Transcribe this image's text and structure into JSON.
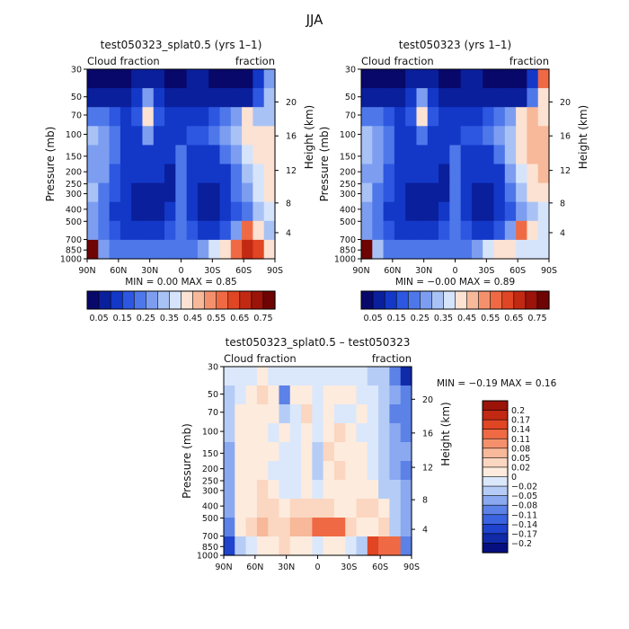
{
  "figure_title": "JJA",
  "chart_data": [
    {
      "type": "heatmap",
      "id": "top-left",
      "title": "test050323_splat0.5 (yrs 1–1)",
      "variable_label": "Cloud fraction",
      "units_label": "fraction",
      "xlabel": "",
      "ylabel": "Pressure (mb)",
      "y2label": "Height (km)",
      "xticks": [
        "90N",
        "60N",
        "30N",
        "0",
        "30S",
        "60S",
        "90S"
      ],
      "yticks": [
        "30",
        "50",
        "70",
        "100",
        "150",
        "200",
        "250",
        "300",
        "400",
        "500",
        "700",
        "850",
        "1000"
      ],
      "y2ticks": [
        "20",
        "16",
        "12",
        "8",
        "4"
      ],
      "stats_text": "MIN =    0.00   MAX =    0.85",
      "min": 0.0,
      "max": 0.85,
      "colorbar_labels": [
        "0.05",
        "0.15",
        "0.25",
        "0.35",
        "0.45",
        "0.55",
        "0.65",
        "0.75"
      ],
      "colorbar_colors": [
        "#08086b",
        "#0a1f9c",
        "#1338c8",
        "#2d57e0",
        "#4e78ea",
        "#7d9ef0",
        "#a9c2f6",
        "#d6e4fb",
        "#fbe2d3",
        "#f8b89a",
        "#f4916c",
        "#ef6a44",
        "#e04524",
        "#c22913",
        "#9b1309",
        "#6e0404"
      ],
      "cells": [
        [
          0.02,
          0.02,
          0.02,
          0.03,
          0.05,
          0.05,
          0.05,
          0.04,
          0.03,
          0.05,
          0.05,
          0.04,
          0.03,
          0.02,
          0.04,
          0.12,
          0.3
        ],
        [
          0.05,
          0.05,
          0.05,
          0.06,
          0.12,
          0.28,
          0.12,
          0.06,
          0.05,
          0.05,
          0.06,
          0.06,
          0.05,
          0.05,
          0.06,
          0.16,
          0.32
        ],
        [
          0.22,
          0.2,
          0.16,
          0.12,
          0.16,
          0.4,
          0.16,
          0.1,
          0.1,
          0.1,
          0.12,
          0.16,
          0.2,
          0.3,
          0.4,
          0.35,
          0.33
        ],
        [
          0.32,
          0.3,
          0.24,
          0.15,
          0.12,
          0.25,
          0.14,
          0.12,
          0.14,
          0.16,
          0.16,
          0.2,
          0.25,
          0.32,
          0.4,
          0.42,
          0.4
        ],
        [
          0.3,
          0.28,
          0.22,
          0.12,
          0.1,
          0.14,
          0.12,
          0.1,
          0.22,
          0.14,
          0.12,
          0.14,
          0.2,
          0.3,
          0.36,
          0.4,
          0.4
        ],
        [
          0.3,
          0.26,
          0.18,
          0.12,
          0.1,
          0.1,
          0.1,
          0.08,
          0.22,
          0.14,
          0.1,
          0.1,
          0.14,
          0.24,
          0.32,
          0.38,
          0.4
        ],
        [
          0.32,
          0.24,
          0.16,
          0.1,
          0.06,
          0.06,
          0.06,
          0.08,
          0.2,
          0.14,
          0.08,
          0.08,
          0.1,
          0.2,
          0.3,
          0.36,
          0.4
        ],
        [
          0.3,
          0.22,
          0.14,
          0.1,
          0.06,
          0.05,
          0.06,
          0.1,
          0.22,
          0.14,
          0.08,
          0.08,
          0.1,
          0.18,
          0.24,
          0.32,
          0.36
        ],
        [
          0.28,
          0.2,
          0.18,
          0.14,
          0.12,
          0.1,
          0.12,
          0.18,
          0.24,
          0.18,
          0.12,
          0.12,
          0.16,
          0.3,
          0.6,
          0.4,
          0.35
        ],
        [
          0.8,
          0.3,
          0.24,
          0.2,
          0.2,
          0.2,
          0.2,
          0.24,
          0.24,
          0.22,
          0.3,
          0.36,
          0.4,
          0.55,
          0.7,
          0.62,
          0.4
        ]
      ]
    },
    {
      "type": "heatmap",
      "id": "top-right",
      "title": "test050323 (yrs 1–1)",
      "variable_label": "Cloud fraction",
      "units_label": "fraction",
      "xlabel": "",
      "ylabel": "Pressure (mb)",
      "y2label": "Height (km)",
      "xticks": [
        "90N",
        "60N",
        "30N",
        "0",
        "30S",
        "60S",
        "90S"
      ],
      "yticks": [
        "30",
        "50",
        "70",
        "100",
        "150",
        "200",
        "250",
        "300",
        "400",
        "500",
        "700",
        "850",
        "1000"
      ],
      "y2ticks": [
        "20",
        "16",
        "12",
        "8",
        "4"
      ],
      "stats_text": "MIN =   −0.00   MAX =    0.89",
      "min": -0.0,
      "max": 0.89,
      "colorbar_labels": [
        "0.05",
        "0.15",
        "0.25",
        "0.35",
        "0.45",
        "0.55",
        "0.65",
        "0.75"
      ],
      "colorbar_colors": [
        "#08086b",
        "#0a1f9c",
        "#1338c8",
        "#2d57e0",
        "#4e78ea",
        "#7d9ef0",
        "#a9c2f6",
        "#d6e4fb",
        "#fbe2d3",
        "#f8b89a",
        "#f4916c",
        "#ef6a44",
        "#e04524",
        "#c22913",
        "#9b1309",
        "#6e0404"
      ],
      "cells": [
        [
          0.02,
          0.02,
          0.02,
          0.03,
          0.05,
          0.05,
          0.05,
          0.04,
          0.03,
          0.05,
          0.05,
          0.04,
          0.03,
          0.02,
          0.04,
          0.14,
          0.55
        ],
        [
          0.05,
          0.05,
          0.05,
          0.06,
          0.12,
          0.3,
          0.12,
          0.06,
          0.05,
          0.05,
          0.06,
          0.06,
          0.05,
          0.05,
          0.06,
          0.2,
          0.42
        ],
        [
          0.24,
          0.22,
          0.16,
          0.12,
          0.16,
          0.42,
          0.16,
          0.1,
          0.1,
          0.1,
          0.12,
          0.16,
          0.2,
          0.3,
          0.42,
          0.45,
          0.44
        ],
        [
          0.34,
          0.3,
          0.24,
          0.15,
          0.12,
          0.24,
          0.14,
          0.12,
          0.14,
          0.16,
          0.16,
          0.2,
          0.25,
          0.34,
          0.44,
          0.48,
          0.46
        ],
        [
          0.32,
          0.28,
          0.22,
          0.12,
          0.1,
          0.14,
          0.12,
          0.1,
          0.22,
          0.14,
          0.12,
          0.14,
          0.2,
          0.32,
          0.4,
          0.46,
          0.46
        ],
        [
          0.3,
          0.26,
          0.18,
          0.12,
          0.1,
          0.1,
          0.1,
          0.08,
          0.22,
          0.14,
          0.1,
          0.1,
          0.14,
          0.26,
          0.36,
          0.44,
          0.46
        ],
        [
          0.32,
          0.24,
          0.16,
          0.1,
          0.05,
          0.05,
          0.06,
          0.08,
          0.2,
          0.14,
          0.08,
          0.08,
          0.1,
          0.2,
          0.32,
          0.4,
          0.44
        ],
        [
          0.3,
          0.22,
          0.14,
          0.1,
          0.05,
          0.05,
          0.06,
          0.1,
          0.22,
          0.14,
          0.08,
          0.08,
          0.1,
          0.18,
          0.26,
          0.34,
          0.38
        ],
        [
          0.28,
          0.2,
          0.18,
          0.14,
          0.12,
          0.1,
          0.12,
          0.18,
          0.24,
          0.18,
          0.14,
          0.12,
          0.16,
          0.3,
          0.56,
          0.4,
          0.36
        ],
        [
          0.86,
          0.32,
          0.24,
          0.2,
          0.2,
          0.2,
          0.2,
          0.24,
          0.24,
          0.22,
          0.28,
          0.38,
          0.44,
          0.4,
          0.38,
          0.36,
          0.38
        ]
      ]
    },
    {
      "type": "heatmap",
      "id": "difference",
      "title": "test050323_splat0.5 – test050323",
      "variable_label": "Cloud fraction",
      "units_label": "fraction",
      "xlabel": "",
      "ylabel": "Pressure (mb)",
      "y2label": "Height (km)",
      "xticks": [
        "90N",
        "60N",
        "30N",
        "0",
        "30S",
        "60S",
        "90S"
      ],
      "yticks": [
        "30",
        "50",
        "70",
        "100",
        "150",
        "200",
        "250",
        "300",
        "400",
        "500",
        "700",
        "850",
        "1000"
      ],
      "y2ticks": [
        "20",
        "16",
        "12",
        "8",
        "4"
      ],
      "stats_text": "MIN =   −0.19   MAX =    0.16",
      "min": -0.19,
      "max": 0.16,
      "colorbar_labels": [
        "0.2",
        "0.17",
        "0.14",
        "0.11",
        "0.08",
        "0.05",
        "0.02",
        "0",
        "−0.02",
        "−0.05",
        "−0.08",
        "−0.11",
        "−0.14",
        "−0.17",
        "−0.2"
      ],
      "colorbar_colors": [
        "#9b1309",
        "#c22913",
        "#e04524",
        "#ef6a44",
        "#f4916c",
        "#f8b89a",
        "#fbd6c0",
        "#fdebdd",
        "#dbe7fb",
        "#b5cdf6",
        "#8aa9f0",
        "#5c82e8",
        "#3a63e0",
        "#1f43cc",
        "#102aa8",
        "#060f80"
      ],
      "cells": [
        [
          -0.01,
          -0.01,
          0.0,
          0.01,
          0.0,
          0.0,
          0.0,
          -0.01,
          -0.01,
          0.0,
          0.0,
          0.0,
          -0.01,
          -0.02,
          -0.03,
          -0.1,
          -0.18
        ],
        [
          -0.03,
          -0.01,
          0.01,
          0.03,
          0.01,
          -0.08,
          0.01,
          0.02,
          -0.01,
          0.01,
          0.02,
          0.01,
          -0.01,
          -0.01,
          -0.04,
          -0.06,
          -0.09
        ],
        [
          -0.03,
          0.01,
          0.02,
          0.01,
          0.01,
          -0.02,
          0.0,
          0.03,
          -0.01,
          0.02,
          -0.01,
          0.0,
          0.02,
          -0.01,
          -0.04,
          -0.08,
          -0.1
        ],
        [
          -0.04,
          0.02,
          0.02,
          0.01,
          -0.01,
          0.02,
          -0.01,
          0.02,
          -0.01,
          0.02,
          0.03,
          0.01,
          0.0,
          -0.01,
          -0.04,
          -0.06,
          -0.08
        ],
        [
          -0.05,
          0.02,
          0.01,
          0.01,
          0.01,
          -0.01,
          -0.01,
          0.01,
          -0.02,
          0.03,
          0.02,
          0.01,
          0.02,
          -0.01,
          -0.02,
          -0.05,
          -0.07
        ],
        [
          -0.07,
          0.01,
          0.02,
          0.02,
          0.0,
          -0.01,
          -0.01,
          0.01,
          -0.02,
          0.02,
          0.03,
          0.01,
          0.01,
          0.0,
          -0.02,
          -0.05,
          -0.08
        ],
        [
          -0.06,
          0.02,
          0.02,
          0.03,
          0.01,
          -0.01,
          0.0,
          0.02,
          -0.01,
          0.02,
          0.02,
          0.01,
          0.02,
          0.01,
          -0.02,
          -0.04,
          -0.07
        ],
        [
          -0.05,
          0.01,
          0.02,
          0.04,
          0.03,
          0.02,
          0.03,
          0.05,
          0.03,
          0.03,
          0.02,
          0.02,
          0.03,
          0.03,
          0.01,
          -0.04,
          -0.07
        ],
        [
          -0.08,
          0.02,
          0.04,
          0.06,
          0.05,
          0.05,
          0.06,
          0.08,
          0.12,
          0.14,
          0.12,
          0.04,
          0.02,
          0.01,
          0.03,
          -0.02,
          -0.05
        ],
        [
          -0.14,
          -0.03,
          0.0,
          0.02,
          0.02,
          0.03,
          0.02,
          0.01,
          0.0,
          0.01,
          0.02,
          0.0,
          -0.02,
          0.16,
          0.14,
          0.12,
          -0.1
        ]
      ]
    }
  ]
}
